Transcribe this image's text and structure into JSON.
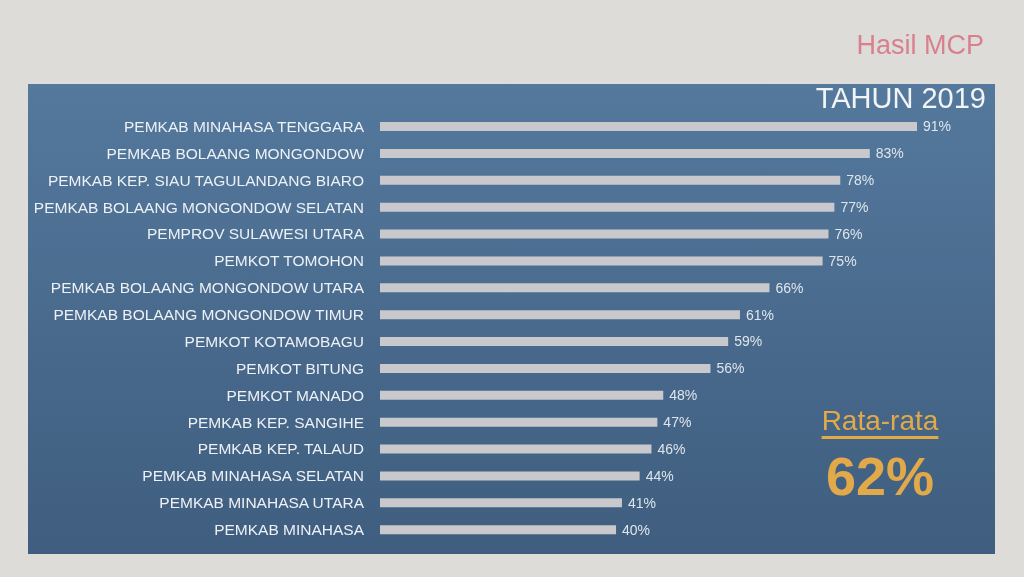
{
  "chart_data": {
    "type": "bar",
    "orientation": "horizontal",
    "title": "Hasil MCP",
    "subtitle": "TAHUN 2019",
    "categories": [
      "PEMKAB MINAHASA TENGGARA",
      "PEMKAB BOLAANG MONGONDOW",
      "PEMKAB KEP. SIAU TAGULANDANG BIARO",
      "PEMKAB BOLAANG MONGONDOW SELATAN",
      "PEMPROV SULAWESI UTARA",
      "PEMKOT TOMOHON",
      "PEMKAB BOLAANG MONGONDOW UTARA",
      "PEMKAB BOLAANG MONGONDOW TIMUR",
      "PEMKOT KOTAMOBAGU",
      "PEMKOT BITUNG",
      "PEMKOT MANADO",
      "PEMKAB KEP. SANGIHE",
      "PEMKAB KEP. TALAUD",
      "PEMKAB MINAHASA SELATAN",
      "PEMKAB MINAHASA UTARA",
      "PEMKAB MINAHASA"
    ],
    "values": [
      91,
      83,
      78,
      77,
      76,
      75,
      66,
      61,
      59,
      56,
      48,
      47,
      46,
      44,
      41,
      40
    ],
    "color": "#c9c9cd",
    "value_labels": [
      "91%",
      "83%",
      "78%",
      "77%",
      "76%",
      "75%",
      "66%",
      "61%",
      "59%",
      "56%",
      "48%",
      "47%",
      "46%",
      "44%",
      "41%",
      "40%"
    ],
    "tick_labels": "y",
    "annotations": [
      "Rata-rata",
      "62%"
    ]
  }
}
